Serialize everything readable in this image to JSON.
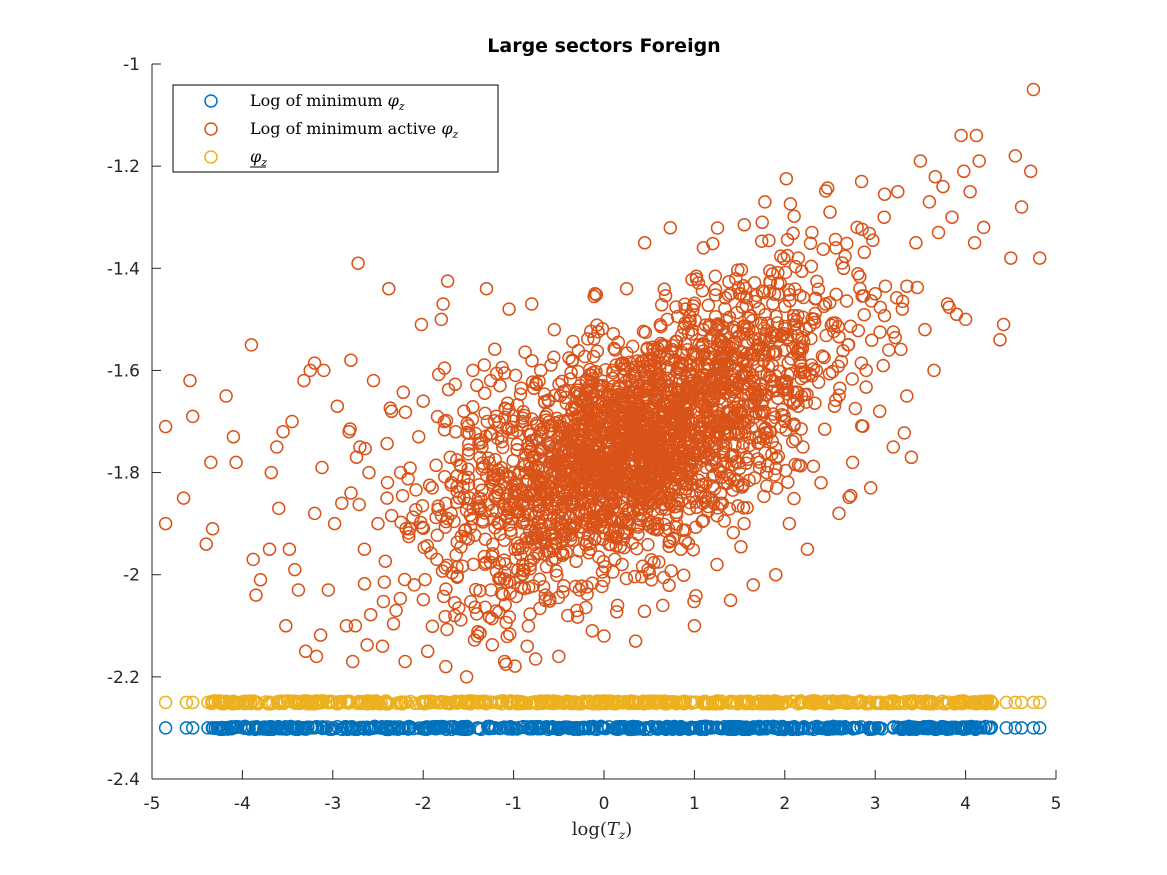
{
  "chart_data": {
    "type": "scatter",
    "title": "Large sectors Foreign",
    "xlabel": "log(T_z)",
    "ylabel": "",
    "xlim": [
      -5,
      5
    ],
    "ylim": [
      -2.4,
      -1
    ],
    "xticks": [
      -5,
      -4,
      -3,
      -2,
      -1,
      0,
      1,
      2,
      3,
      4,
      5
    ],
    "yticks": [
      -2.4,
      -2.2,
      -2,
      -1.8,
      -1.6,
      -1.4,
      -1.2,
      -1
    ],
    "ytick_labels": [
      "-2.4",
      "-2.2",
      "-2",
      "-1.8",
      "-1.6",
      "-1.4",
      "-1.2",
      "-1"
    ],
    "grid": false,
    "legend_position": "top-left",
    "marker": "open-circle",
    "series": [
      {
        "name": "Log of minimum φ_z",
        "color": "#0072BD",
        "y_constant": -2.3,
        "x_range": [
          -4.85,
          4.82
        ],
        "x_samples": [
          -4.85,
          -4.62,
          -4.55,
          -4.38,
          -4.3,
          -4.2,
          -4.1,
          -3.95,
          -3.85,
          -3.7,
          -3.55,
          -3.4,
          -3.3,
          -3.2,
          -3.0,
          -2.8,
          -2.6,
          -2.4,
          -2.2,
          -2.0,
          -1.8,
          -1.6,
          -1.4,
          -1.2,
          -1.0,
          -0.8,
          -0.6,
          -0.4,
          -0.2,
          0.0,
          0.2,
          0.4,
          0.6,
          0.8,
          1.0,
          1.2,
          1.4,
          1.6,
          1.8,
          2.0,
          2.2,
          2.4,
          2.6,
          2.8,
          3.0,
          3.2,
          3.4,
          3.6,
          3.8,
          3.95,
          4.05,
          4.2,
          4.45,
          4.55,
          4.62,
          4.75,
          4.82
        ]
      },
      {
        "name": "Log of minimum active φ_z",
        "color": "#D95319",
        "points": [
          [
            -4.85,
            -1.71
          ],
          [
            -4.85,
            -1.9
          ],
          [
            -4.65,
            -1.85
          ],
          [
            -4.58,
            -1.62
          ],
          [
            -4.55,
            -1.69
          ],
          [
            -4.4,
            -1.94
          ],
          [
            -4.35,
            -1.78
          ],
          [
            -4.33,
            -1.91
          ],
          [
            -4.18,
            -1.65
          ],
          [
            -4.1,
            -1.73
          ],
          [
            -4.07,
            -1.78
          ],
          [
            -3.9,
            -1.55
          ],
          [
            -3.88,
            -1.97
          ],
          [
            -3.85,
            -2.04
          ],
          [
            -3.8,
            -2.01
          ],
          [
            -3.7,
            -1.95
          ],
          [
            -3.68,
            -1.8
          ],
          [
            -3.62,
            -1.75
          ],
          [
            -3.55,
            -1.72
          ],
          [
            -3.52,
            -2.1
          ],
          [
            -3.48,
            -1.95
          ],
          [
            -3.45,
            -1.7
          ],
          [
            -3.42,
            -1.99
          ],
          [
            -3.38,
            -2.03
          ],
          [
            -3.32,
            -1.62
          ],
          [
            -3.3,
            -2.15
          ],
          [
            -3.25,
            -1.6
          ],
          [
            -3.2,
            -1.88
          ],
          [
            -3.18,
            -2.16
          ],
          [
            -3.12,
            -1.79
          ],
          [
            -3.1,
            -1.6
          ],
          [
            -3.05,
            -2.03
          ],
          [
            -2.98,
            -1.9
          ],
          [
            -2.95,
            -1.67
          ],
          [
            -2.9,
            -1.86
          ],
          [
            -2.85,
            -2.1
          ],
          [
            -2.82,
            -1.72
          ],
          [
            -2.8,
            -1.58
          ],
          [
            -2.78,
            -2.17
          ],
          [
            -2.75,
            -2.1
          ],
          [
            -2.72,
            -1.39
          ],
          [
            -2.7,
            -1.75
          ],
          [
            -2.65,
            -1.95
          ],
          [
            -2.6,
            -1.8
          ],
          [
            -2.55,
            -1.62
          ],
          [
            -2.5,
            -1.9
          ],
          [
            -2.45,
            -2.14
          ],
          [
            -2.4,
            -1.85
          ],
          [
            -2.38,
            -1.44
          ],
          [
            -2.35,
            -1.68
          ],
          [
            -2.3,
            -2.07
          ],
          [
            -2.25,
            -1.8
          ],
          [
            -2.2,
            -2.17
          ],
          [
            -2.15,
            -1.91
          ],
          [
            -2.1,
            -2.02
          ],
          [
            -2.05,
            -1.73
          ],
          [
            -2.02,
            -1.51
          ],
          [
            -2.0,
            -1.66
          ],
          [
            -1.95,
            -2.15
          ],
          [
            -1.9,
            -1.83
          ],
          [
            -1.85,
            -1.97
          ],
          [
            -1.8,
            -1.5
          ],
          [
            -1.78,
            -1.47
          ],
          [
            -1.75,
            -2.18
          ],
          [
            -1.7,
            -1.77
          ],
          [
            -1.65,
            -2.08
          ],
          [
            -1.6,
            -1.85
          ],
          [
            -1.55,
            -1.68
          ],
          [
            -1.52,
            -2.2
          ],
          [
            -1.5,
            -1.93
          ],
          [
            -1.45,
            -1.6
          ],
          [
            -1.4,
            -2.12
          ],
          [
            -1.35,
            -1.75
          ],
          [
            -1.3,
            -1.44
          ],
          [
            -1.25,
            -2.03
          ],
          [
            -1.2,
            -1.85
          ],
          [
            -1.15,
            -1.63
          ],
          [
            -1.1,
            -2.17
          ],
          [
            -1.05,
            -1.48
          ],
          [
            -1.0,
            -1.8
          ],
          [
            -0.95,
            -1.95
          ],
          [
            -0.9,
            -1.7
          ],
          [
            -0.85,
            -2.14
          ],
          [
            -0.8,
            -1.47
          ],
          [
            -0.75,
            -1.88
          ],
          [
            -0.7,
            -1.6
          ],
          [
            -0.65,
            -2.05
          ],
          [
            -0.6,
            -1.78
          ],
          [
            -0.55,
            -1.52
          ],
          [
            -0.5,
            -2.16
          ],
          [
            -0.45,
            -1.92
          ],
          [
            -0.4,
            -1.7
          ],
          [
            -0.35,
            -1.58
          ],
          [
            -0.3,
            -2.07
          ],
          [
            -0.25,
            -1.83
          ],
          [
            -0.2,
            -1.64
          ],
          [
            -0.15,
            -1.95
          ],
          [
            -0.1,
            -1.45
          ],
          [
            -0.05,
            -1.75
          ],
          [
            0.0,
            -2.12
          ],
          [
            0.05,
            -1.88
          ],
          [
            0.1,
            -1.6
          ],
          [
            0.15,
            -1.73
          ],
          [
            0.2,
            -1.98
          ],
          [
            0.25,
            -1.44
          ],
          [
            0.3,
            -1.68
          ],
          [
            0.35,
            -2.13
          ],
          [
            0.4,
            -1.84
          ],
          [
            0.45,
            -1.35
          ],
          [
            0.5,
            -1.58
          ],
          [
            0.55,
            -1.91
          ],
          [
            0.6,
            -1.72
          ],
          [
            0.65,
            -2.06
          ],
          [
            0.7,
            -1.5
          ],
          [
            0.75,
            -1.8
          ],
          [
            0.8,
            -1.62
          ],
          [
            0.85,
            -1.95
          ],
          [
            0.9,
            -1.48
          ],
          [
            0.95,
            -1.74
          ],
          [
            1.0,
            -2.1
          ],
          [
            1.05,
            -1.55
          ],
          [
            1.1,
            -1.36
          ],
          [
            1.15,
            -1.85
          ],
          [
            1.2,
            -1.66
          ],
          [
            1.25,
            -1.98
          ],
          [
            1.3,
            -1.52
          ],
          [
            1.35,
            -1.78
          ],
          [
            1.4,
            -2.05
          ],
          [
            1.45,
            -1.6
          ],
          [
            1.5,
            -1.45
          ],
          [
            1.55,
            -1.9
          ],
          [
            1.6,
            -1.7
          ],
          [
            1.65,
            -2.02
          ],
          [
            1.7,
            -1.55
          ],
          [
            1.75,
            -1.31
          ],
          [
            1.78,
            -1.27
          ],
          [
            1.8,
            -1.8
          ],
          [
            1.85,
            -1.62
          ],
          [
            1.9,
            -2.0
          ],
          [
            1.95,
            -1.43
          ],
          [
            2.0,
            -1.7
          ],
          [
            2.05,
            -1.9
          ],
          [
            2.1,
            -1.5
          ],
          [
            2.15,
            -1.38
          ],
          [
            2.2,
            -1.75
          ],
          [
            2.25,
            -1.95
          ],
          [
            2.3,
            -1.33
          ],
          [
            2.35,
            -1.6
          ],
          [
            2.4,
            -1.82
          ],
          [
            2.45,
            -1.47
          ],
          [
            2.5,
            -1.29
          ],
          [
            2.55,
            -1.67
          ],
          [
            2.6,
            -1.88
          ],
          [
            2.65,
            -1.4
          ],
          [
            2.7,
            -1.55
          ],
          [
            2.75,
            -1.78
          ],
          [
            2.8,
            -1.32
          ],
          [
            2.85,
            -1.23
          ],
          [
            2.9,
            -1.6
          ],
          [
            2.95,
            -1.83
          ],
          [
            3.0,
            -1.45
          ],
          [
            3.05,
            -1.68
          ],
          [
            3.1,
            -1.3
          ],
          [
            3.15,
            -1.56
          ],
          [
            3.2,
            -1.75
          ],
          [
            3.25,
            -1.25
          ],
          [
            3.3,
            -1.48
          ],
          [
            3.35,
            -1.65
          ],
          [
            3.4,
            -1.77
          ],
          [
            3.45,
            -1.35
          ],
          [
            3.5,
            -1.19
          ],
          [
            3.55,
            -1.52
          ],
          [
            3.6,
            -1.27
          ],
          [
            3.65,
            -1.6
          ],
          [
            3.7,
            -1.33
          ],
          [
            3.75,
            -1.24
          ],
          [
            3.8,
            -1.47
          ],
          [
            3.85,
            -1.3
          ],
          [
            3.9,
            -1.49
          ],
          [
            3.95,
            -1.14
          ],
          [
            3.98,
            -1.21
          ],
          [
            4.0,
            -1.5
          ],
          [
            4.05,
            -1.25
          ],
          [
            4.1,
            -1.35
          ],
          [
            4.12,
            -1.14
          ],
          [
            4.15,
            -1.19
          ],
          [
            4.2,
            -1.32
          ],
          [
            4.38,
            -1.54
          ],
          [
            4.42,
            -1.51
          ],
          [
            4.5,
            -1.38
          ],
          [
            4.55,
            -1.18
          ],
          [
            4.62,
            -1.28
          ],
          [
            4.72,
            -1.21
          ],
          [
            4.75,
            -1.05
          ],
          [
            4.82,
            -1.38
          ]
        ]
      },
      {
        "name": "φ_z (underlined)",
        "color": "#EDB120",
        "y_constant": -2.25,
        "x_range": [
          -4.85,
          4.82
        ],
        "x_samples": [
          -4.85,
          -4.62,
          -4.55,
          -4.38,
          -4.3,
          -4.2,
          -4.1,
          -3.95,
          -3.85,
          -3.7,
          -3.55,
          -3.4,
          -3.3,
          -3.2,
          -3.0,
          -2.8,
          -2.6,
          -2.4,
          -2.2,
          -2.0,
          -1.8,
          -1.6,
          -1.4,
          -1.2,
          -1.0,
          -0.8,
          -0.6,
          -0.4,
          -0.2,
          0.0,
          0.2,
          0.4,
          0.6,
          0.8,
          1.0,
          1.2,
          1.4,
          1.6,
          1.8,
          2.0,
          2.2,
          2.4,
          2.6,
          2.8,
          3.0,
          3.2,
          3.4,
          3.6,
          3.8,
          3.95,
          4.05,
          4.2,
          4.45,
          4.55,
          4.62,
          4.75,
          4.82
        ]
      }
    ]
  }
}
